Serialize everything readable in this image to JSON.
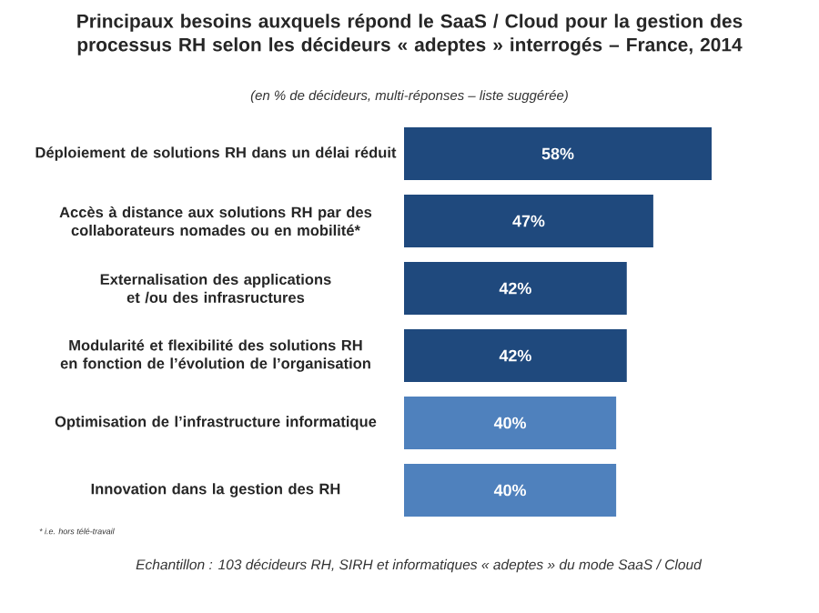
{
  "chart_data": {
    "type": "bar",
    "orientation": "horizontal",
    "title": "Principaux besoins auxquels répond le SaaS / Cloud pour la gestion des processus RH selon les décideurs « adeptes » interrogés – France, 2014",
    "subtitle": "(en % de décideurs, multi-réponses – liste suggérée)",
    "categories": [
      "Déploiement de solutions RH dans un délai réduit",
      "Accès à distance aux solutions RH par des collaborateurs nomades ou en mobilité*",
      "Externalisation des applications et /ou des infrasructures",
      "Modularité et flexibilité des solutions RH en fonction de l’évolution de l’organisation",
      "Optimisation de l’infrastructure informatique",
      "Innovation dans la gestion des RH"
    ],
    "values": [
      58,
      47,
      42,
      42,
      40,
      40
    ],
    "value_labels": [
      "58%",
      "47%",
      "42%",
      "42%",
      "40%",
      "40%"
    ],
    "colors": [
      "#1f497d",
      "#1f497d",
      "#1f497d",
      "#1f497d",
      "#4f81bd",
      "#4f81bd"
    ],
    "tick_labels": "y",
    "annotations": [
      "* i.e. hors télé-travail",
      "Echantillon : 103 décideurs RH, SIRH et informatiques « adeptes » du mode SaaS / Cloud"
    ]
  }
}
